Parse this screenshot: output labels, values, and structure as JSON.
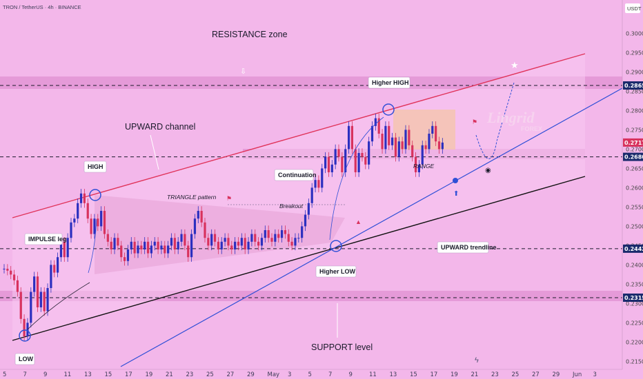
{
  "header": {
    "symbol_line": "TRON / TetherUS · 4h · BINANCE",
    "currency": "USDT"
  },
  "watermark": {
    "brand": "Lingrid",
    "sub": "FOREX"
  },
  "colors": {
    "background": "#f3b7ea",
    "zone_band": "#d884c8",
    "up_candle": "#2b2fbf",
    "down_candle": "#d8325e",
    "channel_top": "#e0335a",
    "trendline": "#2f4fd6",
    "support_line": "#111111",
    "price_tag": "#1a2a6c",
    "current_price_tag": "#d8325e"
  },
  "chart_data": {
    "type": "candlestick",
    "title": "TRON / TetherUS · 4h · BINANCE",
    "y_unit": "USDT",
    "ylim": [
      0.214,
      0.304
    ],
    "y_ticks": [
      0.215,
      0.22,
      0.225,
      0.23,
      0.235,
      0.24,
      0.245,
      0.25,
      0.255,
      0.26,
      0.265,
      0.27,
      0.275,
      0.28,
      0.285,
      0.29,
      0.295,
      0.3
    ],
    "x_ticks": [
      "5",
      "7",
      "9",
      "11",
      "13",
      "15",
      "17",
      "19",
      "21",
      "23",
      "25",
      "27",
      "29",
      "May",
      "3",
      "5",
      "7",
      "9",
      "11",
      "13",
      "15",
      "17",
      "19",
      "21",
      "23",
      "25",
      "27",
      "29",
      "Jun",
      "3"
    ],
    "grid": false,
    "key_levels": [
      {
        "price": 0.2865,
        "label": "0.2865"
      },
      {
        "price": 0.268,
        "label": "0.2680"
      },
      {
        "price": 0.2442,
        "label": "0.2442"
      },
      {
        "price": 0.2315,
        "label": "0.2315"
      }
    ],
    "current_price": {
      "price": 0.2717,
      "label": "0.2717"
    },
    "sub_price": {
      "price": 0.27,
      "label": "0.2700"
    },
    "candles_close": [
      0.239,
      0.2385,
      0.2375,
      0.236,
      0.233,
      0.226,
      0.2215,
      0.225,
      0.233,
      0.237,
      0.229,
      0.233,
      0.228,
      0.234,
      0.24,
      0.238,
      0.242,
      0.246,
      0.242,
      0.247,
      0.251,
      0.252,
      0.256,
      0.2585,
      0.256,
      0.252,
      0.248,
      0.252,
      0.25,
      0.254,
      0.248,
      0.246,
      0.244,
      0.247,
      0.245,
      0.242,
      0.241,
      0.244,
      0.246,
      0.243,
      0.245,
      0.244,
      0.246,
      0.243,
      0.245,
      0.246,
      0.244,
      0.245,
      0.243,
      0.245,
      0.247,
      0.244,
      0.246,
      0.248,
      0.245,
      0.242,
      0.248,
      0.252,
      0.254,
      0.251,
      0.247,
      0.245,
      0.248,
      0.246,
      0.244,
      0.246,
      0.247,
      0.245,
      0.244,
      0.246,
      0.245,
      0.247,
      0.244,
      0.246,
      0.248,
      0.246,
      0.245,
      0.247,
      0.249,
      0.247,
      0.246,
      0.248,
      0.247,
      0.249,
      0.248,
      0.246,
      0.245,
      0.247,
      0.247,
      0.25,
      0.253,
      0.256,
      0.26,
      0.262,
      0.26,
      0.265,
      0.268,
      0.264,
      0.266,
      0.27,
      0.268,
      0.264,
      0.27,
      0.276,
      0.27,
      0.264,
      0.269,
      0.268,
      0.266,
      0.272,
      0.276,
      0.278,
      0.274,
      0.27,
      0.276,
      0.271,
      0.273,
      0.268,
      0.272,
      0.27,
      0.275,
      0.271,
      0.268,
      0.264,
      0.266,
      0.271,
      0.27,
      0.274,
      0.276,
      0.272,
      0.27,
      0.2717
    ]
  },
  "annotations": {
    "resistance_zone": "RESISTANCE zone",
    "upward_channel": "UPWARD channel",
    "high": "HIGH",
    "impulse_leg": "IMPULSE leg",
    "triangle_pattern": "TRIANGLE pattern",
    "breakout": "Breakout",
    "continuation": "Continuation",
    "higher_high": "Higher HIGH",
    "range": "RANGE",
    "upward_trendline": "UPWARD trendline",
    "higher_low": "Higher LOW",
    "support_level": "SUPPORT level",
    "low": "LOW"
  }
}
